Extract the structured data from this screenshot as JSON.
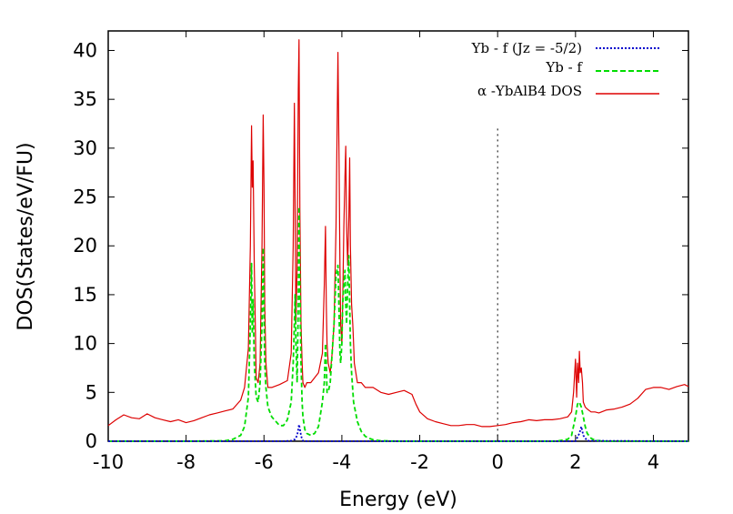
{
  "chart_data": {
    "type": "line",
    "title": "",
    "xlabel": "Energy (eV)",
    "ylabel": "DOS(States/eV/FU)",
    "xlim": [
      -10,
      4.9
    ],
    "ylim": [
      0,
      42
    ],
    "xticks": [
      -10,
      -8,
      -6,
      -4,
      -2,
      0,
      2,
      4
    ],
    "yticks": [
      0,
      5,
      10,
      15,
      20,
      25,
      30,
      35,
      40
    ],
    "fermi_level": 0,
    "legend_position": "top-right",
    "legend": [
      {
        "name": "Yb - f (Jz = -5/2)",
        "color": "#0000cc",
        "style": "dotted"
      },
      {
        "name": "Yb - f",
        "color": "#00dd00",
        "style": "dashed"
      },
      {
        "name": "α -YbAlB4 DOS",
        "color": "#dd0000",
        "style": "solid"
      }
    ],
    "series": [
      {
        "name": "α -YbAlB4 DOS",
        "color": "#dd0000",
        "x": [
          -10,
          -9.8,
          -9.6,
          -9.4,
          -9.2,
          -9,
          -8.8,
          -8.6,
          -8.4,
          -8.2,
          -8,
          -7.8,
          -7.6,
          -7.4,
          -7.2,
          -7,
          -6.8,
          -6.6,
          -6.5,
          -6.4,
          -6.35,
          -6.32,
          -6.3,
          -6.28,
          -6.25,
          -6.22,
          -6.2,
          -6.15,
          -6.1,
          -6.05,
          -6.02,
          -6,
          -5.98,
          -5.95,
          -5.9,
          -5.8,
          -5.6,
          -5.4,
          -5.3,
          -5.25,
          -5.22,
          -5.2,
          -5.18,
          -5.15,
          -5.12,
          -5.1,
          -5.08,
          -5.05,
          -5.02,
          -5,
          -4.95,
          -4.9,
          -4.8,
          -4.7,
          -4.6,
          -4.5,
          -4.45,
          -4.42,
          -4.4,
          -4.38,
          -4.35,
          -4.3,
          -4.25,
          -4.2,
          -4.15,
          -4.1,
          -4.07,
          -4.05,
          -4.03,
          -4,
          -3.98,
          -3.95,
          -3.92,
          -3.9,
          -3.88,
          -3.85,
          -3.82,
          -3.8,
          -3.78,
          -3.75,
          -3.72,
          -3.7,
          -3.68,
          -3.6,
          -3.5,
          -3.4,
          -3.2,
          -3,
          -2.8,
          -2.6,
          -2.4,
          -2.2,
          -2.1,
          -2,
          -1.8,
          -1.6,
          -1.4,
          -1.2,
          -1,
          -0.8,
          -0.6,
          -0.4,
          -0.2,
          0,
          0.2,
          0.4,
          0.6,
          0.8,
          1,
          1.2,
          1.4,
          1.6,
          1.8,
          1.9,
          1.95,
          2,
          2.03,
          2.05,
          2.08,
          2.1,
          2.12,
          2.15,
          2.18,
          2.2,
          2.25,
          2.3,
          2.4,
          2.5,
          2.6,
          2.8,
          3,
          3.2,
          3.4,
          3.6,
          3.8,
          4,
          4.2,
          4.4,
          4.6,
          4.8,
          4.9
        ],
        "y": [
          1.6,
          2.2,
          2.7,
          2.4,
          2.3,
          2.8,
          2.4,
          2.2,
          2.0,
          2.2,
          1.9,
          2.1,
          2.4,
          2.7,
          2.9,
          3.1,
          3.3,
          4.2,
          5.5,
          9.5,
          20,
          32.3,
          26,
          28.7,
          18,
          11,
          6.5,
          6,
          8,
          20,
          33.4,
          26,
          14,
          8,
          5.5,
          5.5,
          5.8,
          6.2,
          9,
          20,
          34.6,
          24,
          12,
          18,
          36,
          41.1,
          24,
          12,
          8,
          6,
          5.5,
          6,
          6,
          6.5,
          7,
          9,
          16,
          22,
          14,
          10,
          8,
          7,
          9,
          12,
          22,
          39.8,
          28,
          18,
          12,
          10,
          14,
          22,
          27,
          30.2,
          22,
          18,
          23,
          29,
          20,
          14,
          12,
          10,
          8,
          6,
          6,
          5.5,
          5.5,
          5.0,
          4.8,
          5.0,
          5.2,
          4.8,
          3.8,
          3.0,
          2.3,
          2.0,
          1.8,
          1.6,
          1.6,
          1.7,
          1.7,
          1.5,
          1.5,
          1.6,
          1.7,
          1.9,
          2.0,
          2.2,
          2.1,
          2.2,
          2.2,
          2.3,
          2.5,
          3.0,
          5.0,
          8.4,
          4.5,
          8.0,
          6,
          9.2,
          7,
          7.5,
          6,
          4,
          3.5,
          3.3,
          3.0,
          3.0,
          2.9,
          3.2,
          3.3,
          3.5,
          3.8,
          4.4,
          5.3,
          5.5,
          5.5,
          5.3,
          5.6,
          5.8,
          5.6
        ]
      },
      {
        "name": "Yb - f",
        "color": "#00dd00",
        "x": [
          -10,
          -8,
          -7,
          -6.8,
          -6.6,
          -6.5,
          -6.4,
          -6.35,
          -6.32,
          -6.3,
          -6.28,
          -6.25,
          -6.2,
          -6.15,
          -6.1,
          -6.05,
          -6.02,
          -6,
          -5.98,
          -5.95,
          -5.9,
          -5.8,
          -5.6,
          -5.5,
          -5.4,
          -5.3,
          -5.25,
          -5.22,
          -5.2,
          -5.18,
          -5.15,
          -5.12,
          -5.1,
          -5.08,
          -5.05,
          -5.02,
          -5,
          -4.95,
          -4.9,
          -4.8,
          -4.7,
          -4.6,
          -4.5,
          -4.45,
          -4.42,
          -4.4,
          -4.38,
          -4.35,
          -4.3,
          -4.25,
          -4.2,
          -4.15,
          -4.1,
          -4.07,
          -4.05,
          -4.03,
          -4,
          -3.98,
          -3.95,
          -3.92,
          -3.9,
          -3.88,
          -3.85,
          -3.82,
          -3.8,
          -3.78,
          -3.75,
          -3.7,
          -3.6,
          -3.5,
          -3.4,
          -3.3,
          -3.2,
          -3,
          -2.5,
          -2,
          0,
          1.5,
          1.8,
          1.9,
          2,
          2.05,
          2.1,
          2.15,
          2.2,
          2.25,
          2.3,
          2.4,
          2.5,
          2.7,
          3,
          4.9
        ],
        "y": [
          0,
          0,
          0.05,
          0.2,
          0.6,
          1.5,
          4.5,
          12,
          18.2,
          11,
          14.5,
          8,
          4.5,
          4,
          6,
          12,
          19.8,
          13,
          8,
          5.5,
          3.5,
          2.5,
          1.6,
          1.6,
          2.2,
          4,
          8,
          12,
          15,
          10,
          6,
          14,
          24,
          16,
          8,
          4,
          2.5,
          1.2,
          0.8,
          0.6,
          0.8,
          1.5,
          4,
          6,
          10,
          8,
          5,
          5,
          6,
          9,
          12,
          17,
          18,
          13,
          9,
          8,
          10,
          14,
          16,
          17.5,
          14,
          12,
          16,
          19,
          14,
          10,
          7,
          4,
          2,
          1,
          0.5,
          0.3,
          0.15,
          0.05,
          0,
          0,
          0,
          0,
          0.2,
          0.6,
          2.5,
          3.8,
          4,
          3.5,
          2.5,
          1.5,
          0.8,
          0.3,
          0.1,
          0,
          0,
          0
        ]
      },
      {
        "name": "Yb - f (Jz = -5/2)",
        "color": "#0000cc",
        "x": [
          -10,
          -6,
          -5.5,
          -5.3,
          -5.2,
          -5.15,
          -5.12,
          -5.1,
          -5.08,
          -5.05,
          -5.02,
          -5,
          -4.9,
          -4.7,
          -4.5,
          -4,
          2,
          2.1,
          2.15,
          2.2,
          2.3,
          4.9
        ],
        "y": [
          0,
          0,
          0,
          0.05,
          0.2,
          0.6,
          1.2,
          1.7,
          1.3,
          0.6,
          0.2,
          0.05,
          0,
          0,
          0,
          0,
          0,
          0.8,
          1.5,
          0.6,
          0.05,
          0
        ]
      }
    ]
  }
}
